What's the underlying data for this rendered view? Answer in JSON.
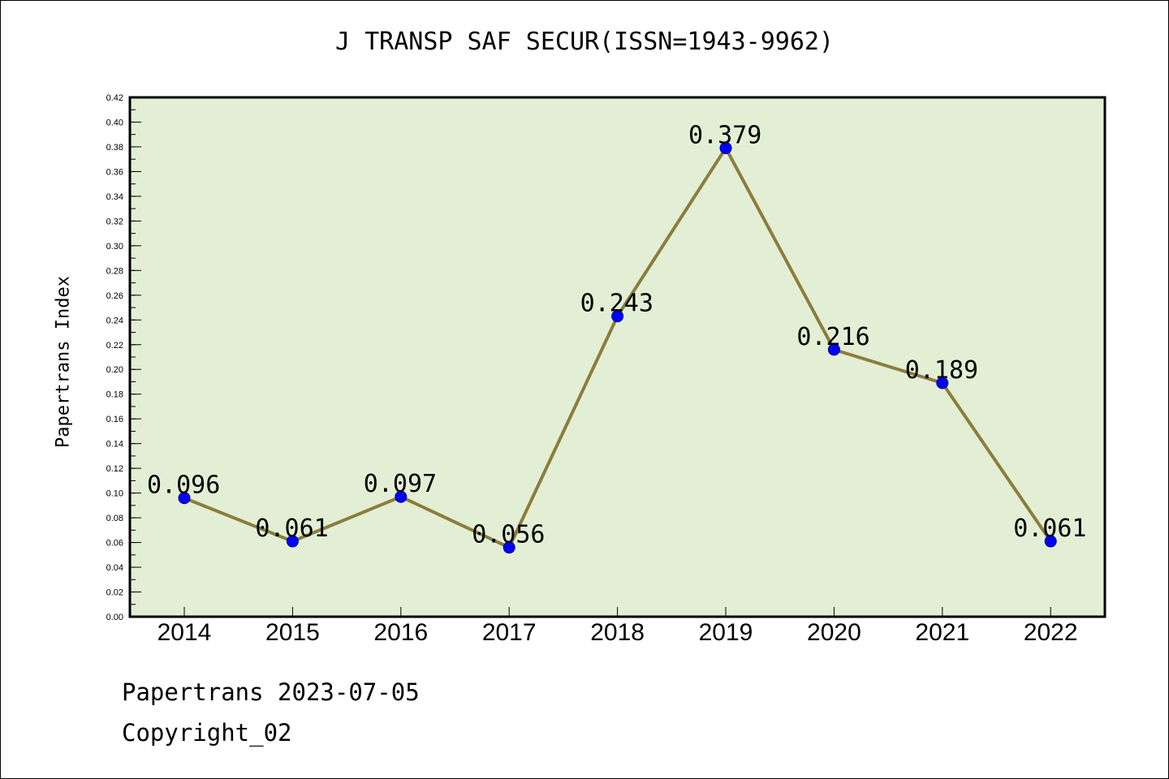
{
  "header": {
    "title": "J TRANSP SAF SECUR(ISSN=1943-9962)"
  },
  "footer": {
    "date_line": "Papertrans 2023-07-05",
    "copyright": "Copyright_02"
  },
  "chart_data": {
    "type": "line",
    "title": "J TRANSP SAF SECUR(ISSN=1943-9962)",
    "xlabel": "",
    "ylabel": "Papertrans Index",
    "categories": [
      "2014",
      "2015",
      "2016",
      "2017",
      "2018",
      "2019",
      "2020",
      "2021",
      "2022"
    ],
    "series": [
      {
        "values": [
          0.096,
          0.061,
          0.097,
          0.056,
          0.243,
          0.379,
          0.216,
          0.189,
          0.061
        ]
      }
    ],
    "data_labels": [
      "0.096",
      "0.061",
      "0.097",
      "0.056",
      "0.243",
      "0.379",
      "0.216",
      "0.189",
      "0.061"
    ],
    "ylim": [
      0,
      0.42
    ],
    "yticks": [
      "0.00",
      "0.02",
      "0.04",
      "0.06",
      "0.08",
      "0.10",
      "0.12",
      "0.14",
      "0.16",
      "0.18",
      "0.20",
      "0.22",
      "0.24",
      "0.26",
      "0.28",
      "0.30",
      "0.32",
      "0.34",
      "0.36",
      "0.38",
      "0.40",
      "0.42"
    ],
    "grid": false,
    "colors": {
      "plot_background": "#e2efd5",
      "line": "#8b7d3a",
      "marker": "#0000ff"
    }
  }
}
